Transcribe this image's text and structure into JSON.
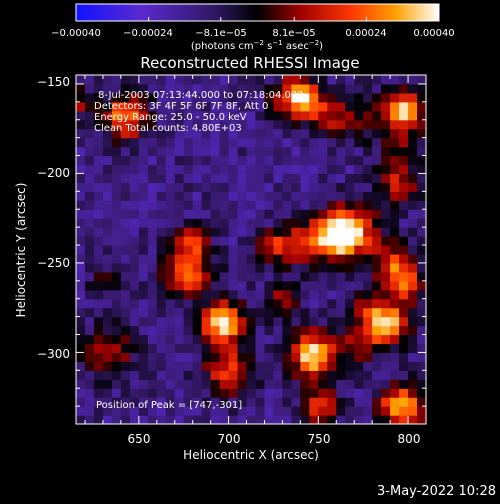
{
  "chart_data": {
    "type": "heatmap",
    "title": "Reconstructed RHESSI Image",
    "xlabel": "Heliocentric X (arcsec)",
    "ylabel": "Heliocentric Y (arcsec)",
    "xlim": [
      615,
      810
    ],
    "ylim": [
      -340,
      -145
    ],
    "x_ticks": [
      650,
      700,
      750,
      800
    ],
    "x_tick_labels": [
      "650",
      "700",
      "750",
      "800"
    ],
    "y_ticks": [
      -150,
      -200,
      -250,
      -300
    ],
    "y_tick_labels": [
      "−150",
      "−200",
      "−250",
      "−300"
    ],
    "colorbar": {
      "range": [
        -0.0004,
        0.0004
      ],
      "tick_values": [
        -0.0004,
        -0.00024,
        -8.1e-05,
        8.1e-05,
        0.00024,
        0.0004
      ],
      "tick_labels": [
        "−0.00040",
        "−0.00024",
        "−8.1e−05",
        "8.1e−05",
        "0.00024",
        "0.00040"
      ],
      "unit_main": "(photons cm",
      "unit_exp1": "−2",
      "unit_mid": " s",
      "unit_exp2": "−1",
      "unit_tail": " asec",
      "unit_exp3": "−2",
      "unit_end": ")"
    },
    "annotations": {
      "time_range": "8-Jul-2003 07:13:44.000 to 07:18:04.000",
      "detectors": "Detectors: 3F 4F 5F 6F 7F 8F, Att 0",
      "energy": "Energy Range: 25.0 - 50.0 keV",
      "clean": "Clean    Total counts: 4.80E+03",
      "peak": "Position of Peak = [747,-301]"
    },
    "peak": {
      "x": 747,
      "y": -301
    },
    "colors": {
      "low": "#0000ff",
      "mid": "#000000",
      "high": "#ffffff"
    },
    "footer_date": "3-May-2022 10:28"
  }
}
